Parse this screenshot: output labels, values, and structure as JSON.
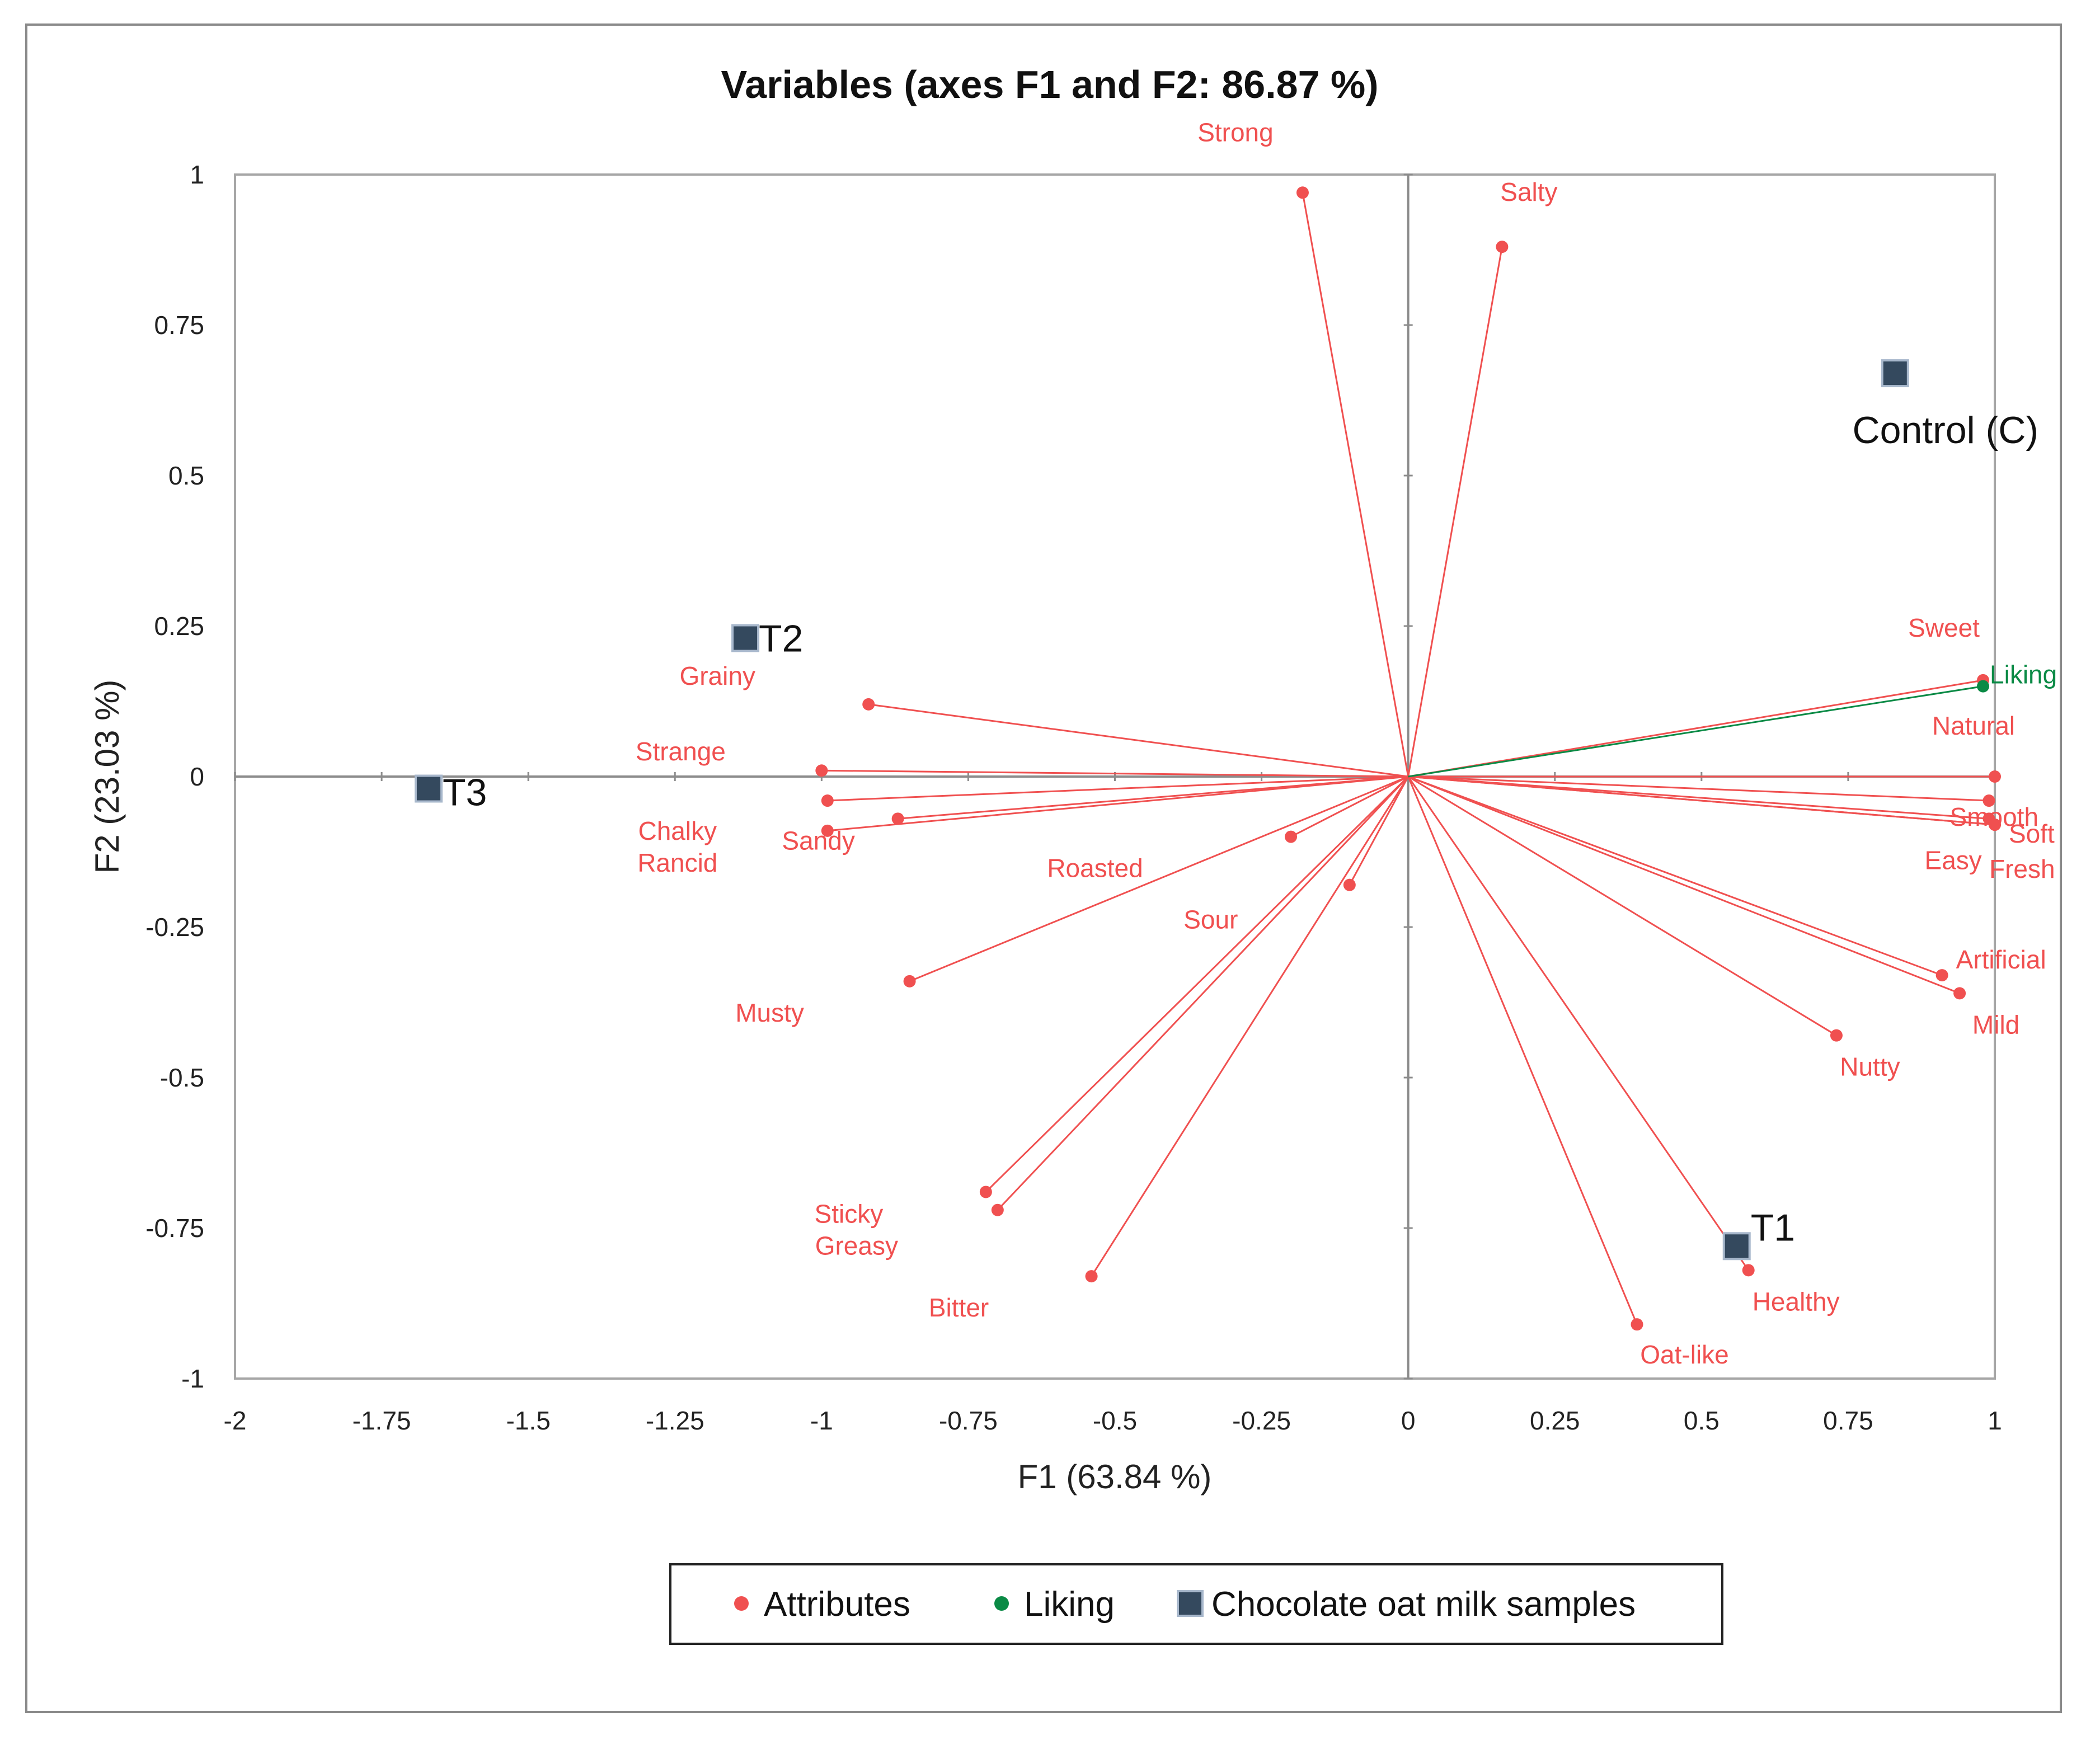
{
  "chart_data": {
    "type": "scatter",
    "subtype": "biplot",
    "title": "Variables (axes F1 and F2: 86.87 %)",
    "xlabel": "F1 (63.84 %)",
    "ylabel": "F2 (23.03 %)",
    "xlim": [
      -2,
      1
    ],
    "ylim": [
      -1,
      1
    ],
    "xticks": [
      -2,
      -1.75,
      -1.5,
      -1.25,
      -1,
      -0.75,
      -0.5,
      -0.25,
      0,
      0.25,
      0.5,
      0.75,
      1
    ],
    "yticks": [
      -1,
      -0.75,
      -0.5,
      -0.25,
      0,
      0.25,
      0.5,
      0.75,
      1
    ],
    "colors": {
      "attributes": "#f05050",
      "liking": "#0a8a45",
      "samples": "#34495e"
    },
    "series": [
      {
        "name": "Attributes",
        "color": "#f05050",
        "points": [
          {
            "label": "Strong",
            "x": -0.18,
            "y": 0.97
          },
          {
            "label": "Salty",
            "x": 0.16,
            "y": 0.88
          },
          {
            "label": "Grainy",
            "x": -0.92,
            "y": 0.12
          },
          {
            "label": "Strange",
            "x": -1.0,
            "y": 0.01
          },
          {
            "label": "Chalky",
            "x": -0.99,
            "y": -0.04
          },
          {
            "label": "Rancid",
            "x": -0.99,
            "y": -0.09
          },
          {
            "label": "Sandy",
            "x": -0.87,
            "y": -0.07
          },
          {
            "label": "Roasted",
            "x": -0.2,
            "y": -0.1
          },
          {
            "label": "Sour",
            "x": -0.1,
            "y": -0.18
          },
          {
            "label": "Musty",
            "x": -0.85,
            "y": -0.34
          },
          {
            "label": "Sticky",
            "x": -0.72,
            "y": -0.69
          },
          {
            "label": "Greasy",
            "x": -0.7,
            "y": -0.72
          },
          {
            "label": "Bitter",
            "x": -0.54,
            "y": -0.83
          },
          {
            "label": "Oat-like",
            "x": 0.39,
            "y": -0.91
          },
          {
            "label": "Healthy",
            "x": 0.58,
            "y": -0.82
          },
          {
            "label": "Nutty",
            "x": 0.73,
            "y": -0.43
          },
          {
            "label": "Mild",
            "x": 0.94,
            "y": -0.36
          },
          {
            "label": "Artificial",
            "x": 0.91,
            "y": -0.33
          },
          {
            "label": "Sweet",
            "x": 0.98,
            "y": 0.16
          },
          {
            "label": "Natural",
            "x": 1.0,
            "y": 0.0
          },
          {
            "label": "Smooth",
            "x": 0.99,
            "y": -0.04
          },
          {
            "label": "Easy",
            "x": 0.99,
            "y": -0.07
          },
          {
            "label": "Soft",
            "x": 1.0,
            "y": -0.08
          },
          {
            "label": "Fresh",
            "x": 1.0,
            "y": -0.08
          }
        ]
      },
      {
        "name": "Liking",
        "color": "#0a8a45",
        "points": [
          {
            "label": "Liking",
            "x": 0.98,
            "y": 0.15
          }
        ]
      },
      {
        "name": "Chocolate oat milk samples",
        "color": "#34495e",
        "points": [
          {
            "label": "Control (C)",
            "x": 0.83,
            "y": 0.67
          },
          {
            "label": "T1",
            "x": 0.56,
            "y": -0.78
          },
          {
            "label": "T2",
            "x": -1.13,
            "y": 0.23
          },
          {
            "label": "T3",
            "x": -1.67,
            "y": -0.02
          }
        ]
      }
    ],
    "legend": {
      "position": "bottom-center",
      "entries": [
        {
          "label": "Attributes",
          "marker": "circle",
          "color": "#f05050"
        },
        {
          "label": "Liking",
          "marker": "circle",
          "color": "#0a8a45"
        },
        {
          "label": "Chocolate oat milk samples",
          "marker": "square",
          "color": "#34495e"
        }
      ]
    }
  }
}
